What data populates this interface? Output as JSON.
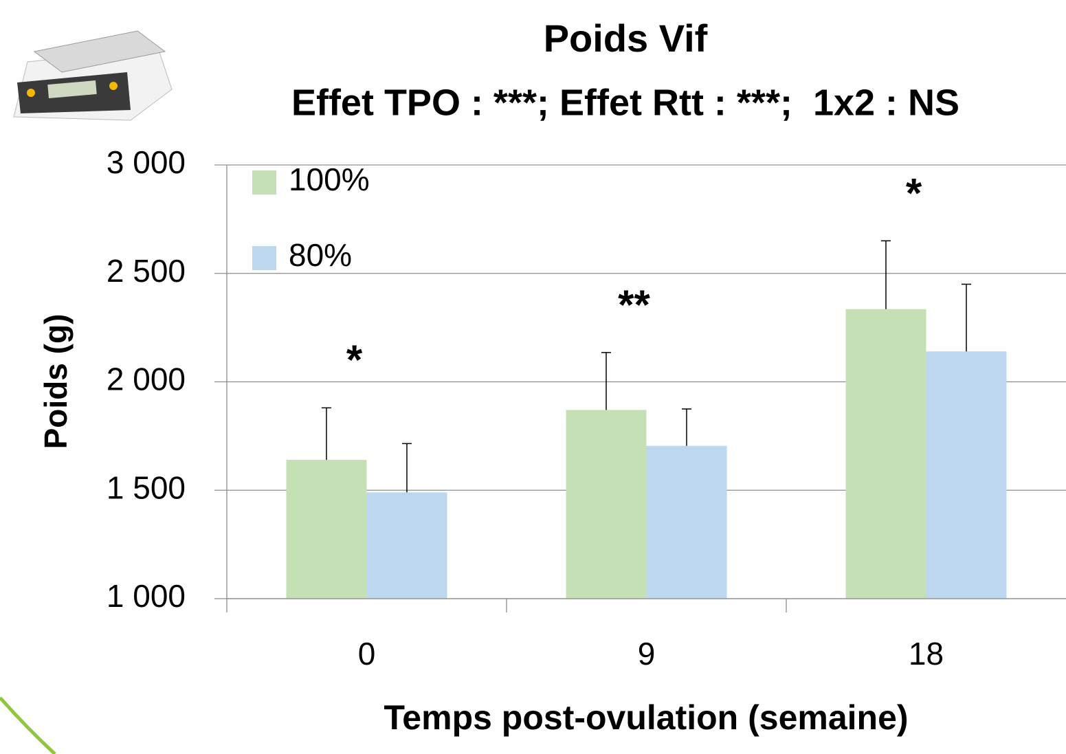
{
  "chart_data": {
    "type": "bar",
    "title": "Poids Vif",
    "subtitle": "Effet TPO : ***; Effet Rtt : ***;  1x2 : NS",
    "x_label": "Temps post-ovulation (semaine)",
    "y_label": "Poids (g)",
    "categories": [
      "0",
      "9",
      "18"
    ],
    "series": [
      {
        "name": "100%",
        "color": "#c5e0b4",
        "values": [
          1640,
          1870,
          2335
        ],
        "errors": [
          240,
          265,
          315
        ]
      },
      {
        "name": "80%",
        "color": "#bdd7ee",
        "values": [
          1490,
          1705,
          2140
        ],
        "errors": [
          225,
          170,
          310
        ]
      }
    ],
    "annotations": [
      "*",
      "**",
      "*"
    ],
    "ylim": [
      1000,
      3000
    ],
    "yticks": [
      {
        "value": 1000,
        "label": "1 000"
      },
      {
        "value": 1500,
        "label": "1 500"
      },
      {
        "value": 2000,
        "label": "2 000"
      },
      {
        "value": 2500,
        "label": "2 500"
      },
      {
        "value": 3000,
        "label": "3 000"
      }
    ],
    "grid": true,
    "legend": "top-left"
  }
}
